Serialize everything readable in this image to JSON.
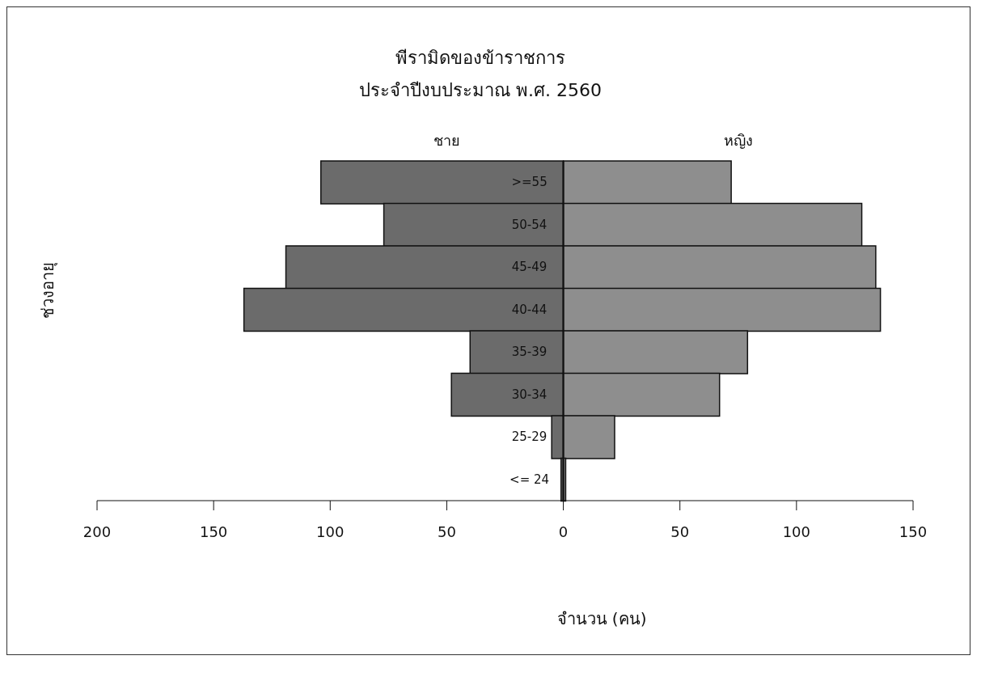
{
  "chart_data": {
    "type": "bar",
    "title": "พีรามิดของข้าราชการ",
    "subtitle": "ประจำปีงบประมาณ พ.ศ. 2560",
    "xlabel": "จำนวน (คน)",
    "ylabel": "ช่วงอายุ",
    "orientation": "horizontal",
    "categories": [
      ">=55",
      "50-54",
      "45-49",
      "40-44",
      "35-39",
      "30-34",
      "25-29",
      "<= 24"
    ],
    "series": [
      {
        "name": "ชาย",
        "color": "#6b6b6b",
        "values": [
          -104,
          -77,
          -119,
          -137,
          -40,
          -48,
          -5,
          -1
        ]
      },
      {
        "name": "หญิง",
        "color": "#8e8e8e",
        "values": [
          72,
          128,
          134,
          136,
          79,
          67,
          22,
          1
        ]
      }
    ],
    "xlim": [
      -200,
      150
    ],
    "xticks": [
      {
        "value": -200,
        "label": "200"
      },
      {
        "value": -150,
        "label": "150"
      },
      {
        "value": -100,
        "label": "100"
      },
      {
        "value": -50,
        "label": "50"
      },
      0,
      50,
      100,
      150
    ],
    "grid": false,
    "stacked": true
  }
}
